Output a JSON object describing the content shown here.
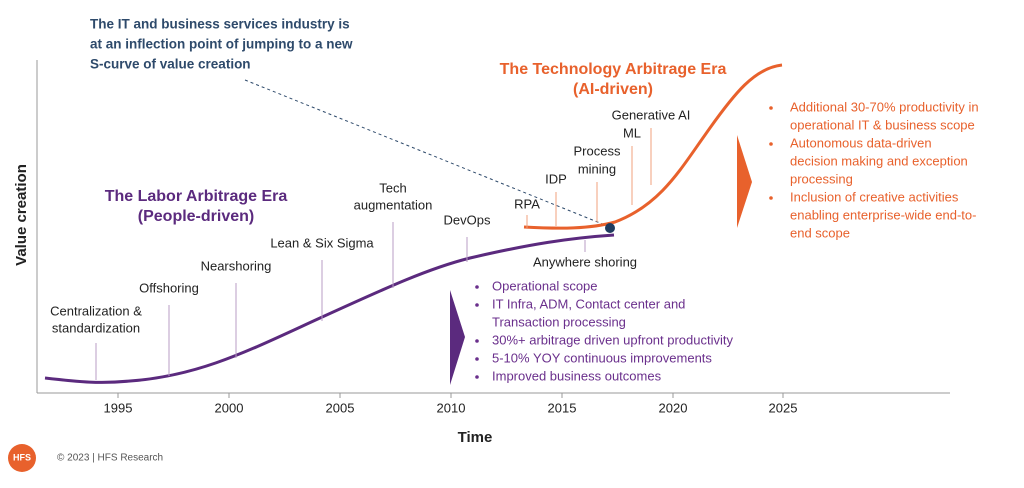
{
  "annotation": [
    "The IT and business services industry is",
    "at an inflection point of jumping to a new",
    "S-curve of value creation"
  ],
  "labor_era": {
    "title": [
      "The Labor Arbitrage Era",
      "(People-driven)"
    ],
    "milestones": [
      [
        "Centralization &",
        "standardization"
      ],
      [
        "Offshoring"
      ],
      [
        "Nearshoring"
      ],
      [
        "Lean & Six Sigma"
      ],
      [
        "Tech",
        "augmentation"
      ],
      [
        "DevOps"
      ],
      [
        "Anywhere shoring"
      ]
    ],
    "bullets": [
      [
        "Operational scope"
      ],
      [
        "IT Infra, ADM, Contact center and",
        "Transaction processing"
      ],
      [
        "30%+ arbitrage driven upfront productivity"
      ],
      [
        "5-10% YOY continuous improvements"
      ],
      [
        "Improved business outcomes"
      ]
    ]
  },
  "tech_era": {
    "title": [
      "The Technology Arbitrage Era",
      "(AI-driven)"
    ],
    "milestones": [
      [
        "RPA"
      ],
      [
        "IDP"
      ],
      [
        "Process",
        "mining"
      ],
      [
        "ML"
      ],
      [
        "Generative AI"
      ]
    ],
    "bullets": [
      [
        "Additional 30-70% productivity in",
        "operational IT & business scope"
      ],
      [
        "Autonomous data-driven",
        "decision making and exception",
        "processing"
      ],
      [
        "Inclusion of creative activities",
        "enabling enterprise-wide end-to-",
        "end scope"
      ]
    ]
  },
  "axes": {
    "y_label": "Value creation",
    "x_label": "Time",
    "x_ticks": [
      1995,
      2000,
      2005,
      2010,
      2015,
      2020,
      2025
    ]
  },
  "footer": {
    "logo": "HFS",
    "copyright": "© 2023 | HFS Research"
  }
}
